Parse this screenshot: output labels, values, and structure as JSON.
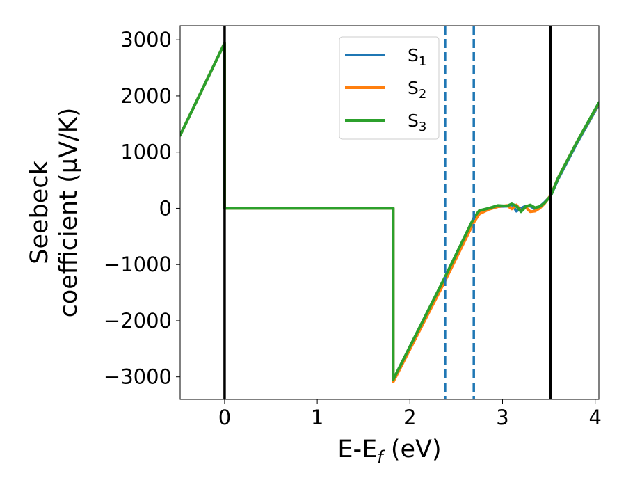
{
  "chart_data": {
    "type": "line",
    "xlabel": "E-E_f (eV)",
    "xlabel_parts": {
      "base": "E-E",
      "sub": "f",
      "unit": " (eV)"
    },
    "ylabel_line1": "Seebeck",
    "ylabel_line2": "coefficient  (μV/K)",
    "xlim": [
      -0.48,
      4.04
    ],
    "ylim": [
      -3400,
      3250
    ],
    "xticks": [
      0,
      1,
      2,
      3,
      4
    ],
    "xtick_labels": [
      "0",
      "1",
      "2",
      "3",
      "4"
    ],
    "yticks": [
      3000,
      2000,
      1000,
      0,
      -1000,
      -2000,
      -3000
    ],
    "ytick_labels": [
      "3000",
      "2000",
      "1000",
      "0",
      "−1000",
      "−2000",
      "−3000"
    ],
    "legend_position": "upper center",
    "grid": false,
    "vlines_solid": [
      0,
      3.52
    ],
    "vlines_dashed": [
      2.38,
      2.69
    ],
    "series": [
      {
        "name": "S_1",
        "label_base": "S",
        "label_sub": "1",
        "color": "#1f77b4",
        "x": [
          -0.48,
          0.0,
          0.0,
          1.82,
          1.82,
          2.38,
          2.69,
          2.75,
          2.85,
          2.95,
          3.05,
          3.1,
          3.15,
          3.2,
          3.25,
          3.3,
          3.35,
          3.4,
          3.45,
          3.52,
          3.6,
          3.8,
          4.04
        ],
        "y": [
          1300,
          2940,
          0,
          0,
          -3060,
          -1230,
          -180,
          -60,
          -10,
          30,
          40,
          70,
          -50,
          0,
          40,
          40,
          -10,
          30,
          100,
          220,
          520,
          1150,
          1850
        ]
      },
      {
        "name": "S_2",
        "label_base": "S",
        "label_sub": "2",
        "color": "#ff7f0e",
        "x": [
          -0.48,
          0.0,
          0.0,
          1.82,
          1.82,
          2.38,
          2.69,
          2.75,
          2.85,
          2.95,
          3.05,
          3.1,
          3.15,
          3.2,
          3.25,
          3.3,
          3.35,
          3.4,
          3.45,
          3.52,
          3.6,
          3.8,
          4.04
        ],
        "y": [
          1300,
          2940,
          0,
          0,
          -3090,
          -1290,
          -250,
          -100,
          -20,
          30,
          50,
          -10,
          60,
          -50,
          20,
          -60,
          -50,
          0,
          80,
          230,
          540,
          1170,
          1870
        ]
      },
      {
        "name": "S_3",
        "label_base": "S",
        "label_sub": "3",
        "color": "#2ca02c",
        "x": [
          -0.48,
          0.0,
          0.0,
          1.82,
          1.82,
          2.38,
          2.69,
          2.75,
          2.85,
          2.95,
          3.05,
          3.1,
          3.15,
          3.2,
          3.25,
          3.3,
          3.35,
          3.4,
          3.45,
          3.52,
          3.6,
          3.8,
          4.04
        ],
        "y": [
          1300,
          2940,
          0,
          0,
          -3050,
          -1220,
          -170,
          -40,
          0,
          50,
          40,
          80,
          40,
          -60,
          30,
          60,
          10,
          30,
          90,
          220,
          540,
          1170,
          1880
        ]
      }
    ]
  }
}
